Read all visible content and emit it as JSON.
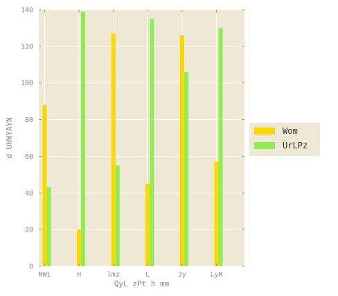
{
  "chart_data": {
    "type": "bar",
    "categories": [
      "RWi",
      "H",
      "lmz",
      "L",
      "Jy",
      "LyR"
    ],
    "series": [
      {
        "name": "Wom",
        "values": [
          88,
          20,
          127,
          45,
          126,
          57
        ],
        "color": "#FFD700"
      },
      {
        "name": "UrLPz",
        "values": [
          43,
          139,
          55,
          135,
          106,
          130
        ],
        "color": "#90EE50"
      }
    ],
    "xlabel": "QyL zPt h mm",
    "ylabel": "d UHWYAYN",
    "ylim": [
      0,
      140
    ],
    "yticks": [
      0,
      20,
      40,
      60,
      80,
      100,
      120,
      140
    ],
    "grid": true,
    "legend_position": "right",
    "background_color": "#EEE8D5",
    "grid_color": "#FFFFFF"
  }
}
